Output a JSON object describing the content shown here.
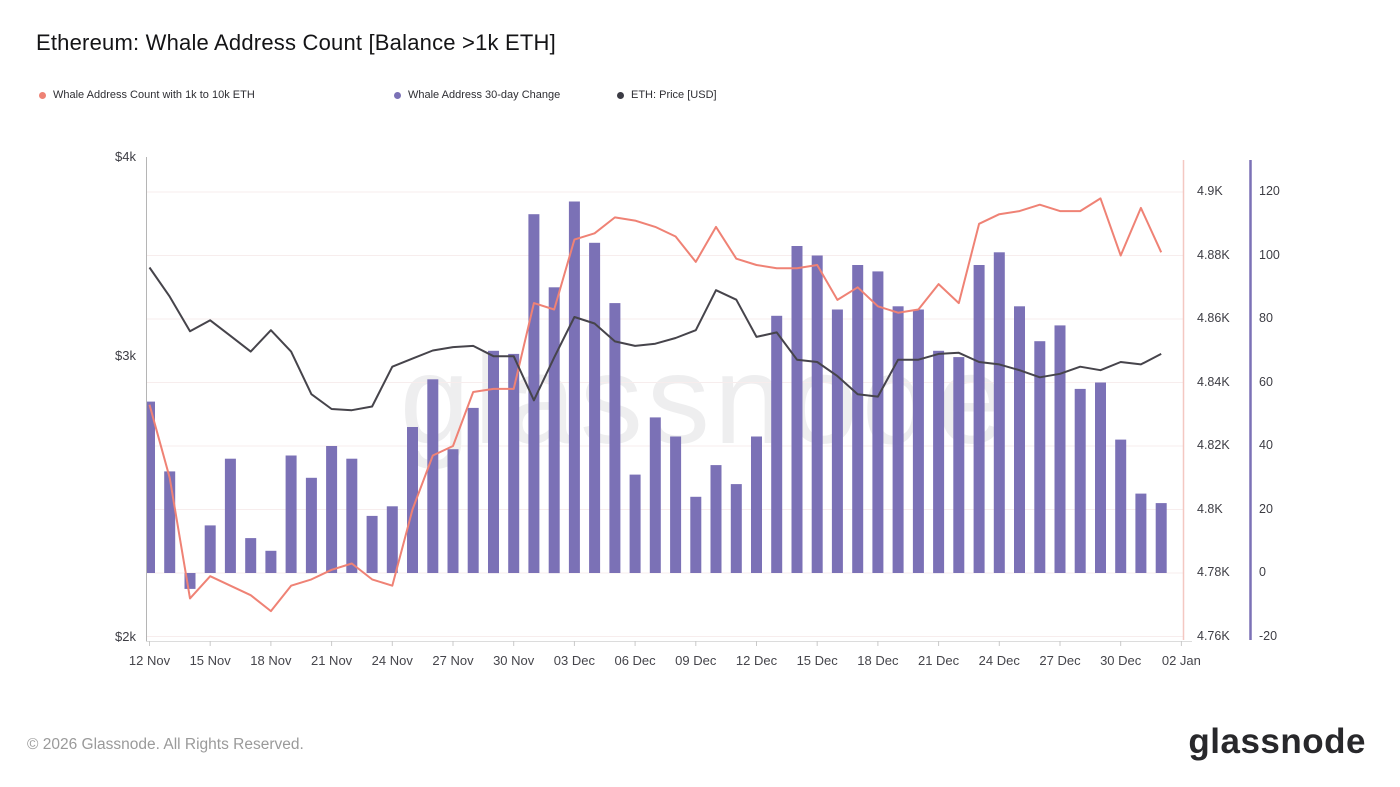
{
  "header": {
    "title": "Ethereum: Whale Address Count [Balance >1k ETH]"
  },
  "legend": {
    "items": [
      {
        "label": "Whale Address Count with 1k to 10k ETH",
        "color": "#ee8275"
      },
      {
        "label": "Whale Address 30-day Change",
        "color": "#7b71b6"
      },
      {
        "label": "ETH: Price [USD]",
        "color": "#3b3b44"
      }
    ]
  },
  "watermark": "glassnode",
  "footer": {
    "copyright": "© 2026 Glassnode. All Rights Reserved.",
    "logo": "glassnode"
  },
  "chart_data": {
    "type": "mixed",
    "title": "Ethereum: Whale Address Count [Balance >1k ETH]",
    "dates": [
      "12 Nov",
      "13 Nov",
      "14 Nov",
      "15 Nov",
      "16 Nov",
      "17 Nov",
      "18 Nov",
      "19 Nov",
      "20 Nov",
      "21 Nov",
      "22 Nov",
      "23 Nov",
      "24 Nov",
      "25 Nov",
      "26 Nov",
      "27 Nov",
      "28 Nov",
      "29 Nov",
      "30 Nov",
      "01 Dec",
      "02 Dec",
      "03 Dec",
      "04 Dec",
      "05 Dec",
      "06 Dec",
      "07 Dec",
      "08 Dec",
      "09 Dec",
      "10 Dec",
      "11 Dec",
      "12 Dec",
      "13 Dec",
      "14 Dec",
      "15 Dec",
      "16 Dec",
      "17 Dec",
      "18 Dec",
      "19 Dec",
      "20 Dec",
      "21 Dec",
      "22 Dec",
      "23 Dec",
      "24 Dec",
      "25 Dec",
      "26 Dec",
      "27 Dec",
      "28 Dec",
      "29 Dec",
      "30 Dec",
      "31 Dec",
      "01 Jan"
    ],
    "series": [
      {
        "name": "Whale Address 30-day Change",
        "type": "bar",
        "axis": "change",
        "color": "#7b71b6",
        "values": [
          54,
          32,
          -5,
          15,
          36,
          11,
          7,
          37,
          30,
          40,
          36,
          18,
          21,
          46,
          61,
          39,
          52,
          70,
          69,
          113,
          90,
          117,
          104,
          85,
          31,
          49,
          43,
          24,
          34,
          28,
          43,
          81,
          103,
          100,
          83,
          97,
          95,
          84,
          83,
          70,
          68,
          97,
          101,
          84,
          73,
          78,
          58,
          60,
          42,
          25,
          22
        ]
      },
      {
        "name": "Whale Address Count with 1k to 10k ETH",
        "type": "line",
        "axis": "whale_count",
        "color": "#ef8275",
        "values": [
          4833,
          4810,
          4772,
          4779,
          4776,
          4773,
          4768,
          4776,
          4778,
          4781,
          4783,
          4778,
          4776,
          4800,
          4817,
          4820,
          4837,
          4838,
          4838,
          4865,
          4863,
          4885,
          4887,
          4892,
          4891,
          4889,
          4886,
          4878,
          4889,
          4879,
          4877,
          4876,
          4876,
          4877,
          4866,
          4870,
          4864,
          4862,
          4863,
          4871,
          4865,
          4890,
          4893,
          4894,
          4896,
          4894,
          4894,
          4898,
          4880,
          4895,
          4881
        ]
      },
      {
        "name": "ETH: Price [USD]",
        "type": "line",
        "axis": "price",
        "color": "#46444b",
        "values": [
          3410,
          3270,
          3110,
          3160,
          3090,
          3020,
          3115,
          3020,
          2840,
          2780,
          2775,
          2790,
          2955,
          2990,
          3025,
          3040,
          3045,
          3000,
          3000,
          2815,
          2995,
          3175,
          3145,
          3065,
          3045,
          3055,
          3080,
          3115,
          3300,
          3255,
          3085,
          3105,
          2985,
          2975,
          2915,
          2840,
          2830,
          2985,
          2985,
          3010,
          3015,
          2975,
          2965,
          2940,
          2910,
          2925,
          2955,
          2940,
          2975,
          2965,
          3010
        ]
      }
    ],
    "axes": {
      "price": {
        "side": "left",
        "scale": "log",
        "unit": "USD",
        "range": [
          2000,
          4000
        ],
        "ticks": [
          {
            "label": "$4k",
            "value": 4000
          },
          {
            "label": "$3k",
            "value": 3000
          },
          {
            "label": "$2k",
            "value": 2000
          }
        ]
      },
      "whale_count": {
        "side": "right",
        "scale": "linear",
        "unit": "addresses",
        "range": [
          4760,
          4900
        ],
        "ticks": [
          {
            "label": "4.9K",
            "value": 4900
          },
          {
            "label": "4.88K",
            "value": 4880
          },
          {
            "label": "4.86K",
            "value": 4860
          },
          {
            "label": "4.84K",
            "value": 4840
          },
          {
            "label": "4.82K",
            "value": 4820
          },
          {
            "label": "4.8K",
            "value": 4800
          },
          {
            "label": "4.78K",
            "value": 4780
          },
          {
            "label": "4.76K",
            "value": 4760
          }
        ]
      },
      "change": {
        "side": "far-right",
        "scale": "linear",
        "unit": "addresses/30d",
        "range": [
          -20,
          120
        ],
        "ticks": [
          {
            "label": "120",
            "value": 120
          },
          {
            "label": "100",
            "value": 100
          },
          {
            "label": "80",
            "value": 80
          },
          {
            "label": "60",
            "value": 60
          },
          {
            "label": "40",
            "value": 40
          },
          {
            "label": "20",
            "value": 20
          },
          {
            "label": "0",
            "value": 0
          },
          {
            "label": "-20",
            "value": -20
          }
        ]
      }
    },
    "xticks": [
      {
        "label": "12 Nov",
        "day": 0
      },
      {
        "label": "15 Nov",
        "day": 3
      },
      {
        "label": "18 Nov",
        "day": 6
      },
      {
        "label": "21 Nov",
        "day": 9
      },
      {
        "label": "24 Nov",
        "day": 12
      },
      {
        "label": "27 Nov",
        "day": 15
      },
      {
        "label": "30 Nov",
        "day": 18
      },
      {
        "label": "03 Dec",
        "day": 21
      },
      {
        "label": "06 Dec",
        "day": 24
      },
      {
        "label": "09 Dec",
        "day": 27
      },
      {
        "label": "12 Dec",
        "day": 30
      },
      {
        "label": "15 Dec",
        "day": 33
      },
      {
        "label": "18 Dec",
        "day": 36
      },
      {
        "label": "21 Dec",
        "day": 39
      },
      {
        "label": "24 Dec",
        "day": 42
      },
      {
        "label": "27 Dec",
        "day": 45
      },
      {
        "label": "30 Dec",
        "day": 48
      },
      {
        "label": "02 Jan",
        "day": 51
      }
    ],
    "grid": "horizontal-only",
    "legend_position": "top-left"
  }
}
